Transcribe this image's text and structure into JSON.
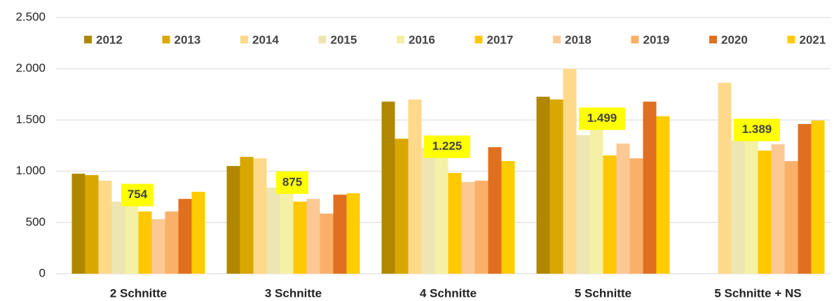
{
  "chart_data": {
    "type": "bar",
    "categories": [
      "2 Schnitte",
      "3 Schnitte",
      "4 Schnitte",
      "5 Schnitte",
      "5 Schnitte + NS"
    ],
    "series": [
      {
        "name": "2012",
        "color": "#b08800",
        "values": [
          976,
          1051,
          1679,
          1727,
          null
        ]
      },
      {
        "name": "2013",
        "color": "#d9a800",
        "values": [
          962,
          1140,
          1317,
          1700,
          null
        ]
      },
      {
        "name": "2014",
        "color": "#ffd98a",
        "values": [
          908,
          1126,
          1700,
          2000,
          1863
        ]
      },
      {
        "name": "2015",
        "color": "#ede6b2",
        "values": [
          703,
          840,
          1230,
          1352,
          1300
        ]
      },
      {
        "name": "2016",
        "color": "#f4f1a6",
        "values": [
          754,
          875,
          1225,
          1499,
          1389
        ],
        "value_labels": [
          "754",
          "875",
          "1.225",
          "1.499",
          "1.389"
        ]
      },
      {
        "name": "2017",
        "color": "#ffc800",
        "values": [
          607,
          703,
          983,
          1154,
          1201
        ]
      },
      {
        "name": "2018",
        "color": "#fcc994",
        "values": [
          532,
          730,
          894,
          1270,
          1263
        ]
      },
      {
        "name": "2019",
        "color": "#fbb06a",
        "values": [
          607,
          587,
          908,
          1126,
          1099
        ]
      },
      {
        "name": "2020",
        "color": "#e07020",
        "values": [
          730,
          771,
          1235,
          1679,
          1461
        ]
      },
      {
        "name": "2021",
        "color": "#ffcc00",
        "values": [
          799,
          785,
          1099,
          1536,
          1495
        ]
      }
    ],
    "ylim": [
      0,
      2500
    ],
    "yticks": [
      0,
      500,
      {
        "value": 1000,
        "label": "1.000"
      },
      {
        "value": 1500,
        "label": "1.500"
      },
      {
        "value": 2000,
        "label": "2.000"
      },
      {
        "value": 2500,
        "label": "2.500"
      }
    ],
    "grid": true,
    "legend": "top"
  }
}
